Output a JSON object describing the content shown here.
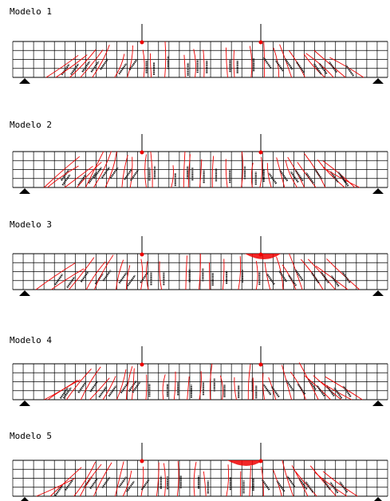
{
  "models": [
    {
      "title": "Modelo 1"
    },
    {
      "title": "Modelo 2"
    },
    {
      "title": "Modelo 3"
    },
    {
      "title": "Modelo 4"
    },
    {
      "title": "Modelo 5"
    }
  ]
}
